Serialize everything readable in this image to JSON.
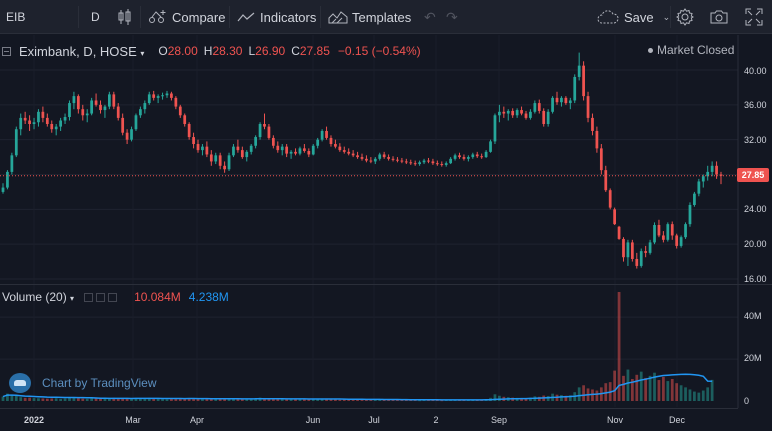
{
  "toolbar": {
    "symbol": "EIB",
    "interval": "D",
    "compare_label": "Compare",
    "indicators_label": "Indicators",
    "templates_label": "Templates",
    "save_label": "Save"
  },
  "legend": {
    "symbol_line": "Eximbank, D, HOSE",
    "open_key": "O",
    "open": "28.00",
    "high_key": "H",
    "high": "28.30",
    "low_key": "L",
    "low": "26.90",
    "close_key": "C",
    "close": "27.85",
    "change": "−0.15 (−0.54%)"
  },
  "market_status": "Market Closed",
  "price_axis": [
    "40.00",
    "36.00",
    "32.00",
    "28.00",
    "24.00",
    "20.00",
    "16.00"
  ],
  "last_price_badge": "27.85",
  "volume": {
    "title": "Volume (20)",
    "value_a": "10.084M",
    "value_b": "4.238M",
    "axis": [
      "40M",
      "20M",
      "0"
    ]
  },
  "attribution": "Chart by TradingView",
  "time_axis": [
    "2022",
    "Mar",
    "Apr",
    "Jun",
    "Jul",
    "2",
    "Sep",
    "Nov",
    "Dec"
  ],
  "colors": {
    "up": "#26a69a",
    "down": "#ef5350",
    "volume_ma": "#2196f3",
    "bg": "#131722"
  },
  "chart_data": {
    "type": "candlestick",
    "price_ylim": [
      16,
      41
    ],
    "last_price": 27.85,
    "candles": [
      [
        26.0,
        27.0,
        25.8,
        26.5
      ],
      [
        26.5,
        28.5,
        26.3,
        28.3
      ],
      [
        28.3,
        30.5,
        28.0,
        30.2
      ],
      [
        30.2,
        33.5,
        30.0,
        33.2
      ],
      [
        33.2,
        35.0,
        32.5,
        34.5
      ],
      [
        34.5,
        35.2,
        33.8,
        34.2
      ],
      [
        34.2,
        34.8,
        33.0,
        33.8
      ],
      [
        33.8,
        34.5,
        33.2,
        34.0
      ],
      [
        34.0,
        35.5,
        33.5,
        35.2
      ],
      [
        35.2,
        35.8,
        34.0,
        34.5
      ],
      [
        34.5,
        35.0,
        33.5,
        33.8
      ],
      [
        33.8,
        34.2,
        32.8,
        33.2
      ],
      [
        33.2,
        33.8,
        32.5,
        33.5
      ],
      [
        33.5,
        34.5,
        33.0,
        34.2
      ],
      [
        34.2,
        35.0,
        33.8,
        34.6
      ],
      [
        34.6,
        36.5,
        34.2,
        36.2
      ],
      [
        36.2,
        37.5,
        35.5,
        37.0
      ],
      [
        37.0,
        37.2,
        35.0,
        35.5
      ],
      [
        35.5,
        36.0,
        34.2,
        34.8
      ],
      [
        34.8,
        35.5,
        34.0,
        35.0
      ],
      [
        35.0,
        36.8,
        34.8,
        36.5
      ],
      [
        36.5,
        37.3,
        35.8,
        36.0
      ],
      [
        36.0,
        36.5,
        35.0,
        35.4
      ],
      [
        35.4,
        36.0,
        34.5,
        35.8
      ],
      [
        35.8,
        37.5,
        35.5,
        37.2
      ],
      [
        37.2,
        37.5,
        35.5,
        35.8
      ],
      [
        35.8,
        36.2,
        34.2,
        34.5
      ],
      [
        34.5,
        35.0,
        32.5,
        32.8
      ],
      [
        32.8,
        33.2,
        31.5,
        32.0
      ],
      [
        32.0,
        33.5,
        31.8,
        33.2
      ],
      [
        33.2,
        35.0,
        33.0,
        34.8
      ],
      [
        34.8,
        35.8,
        34.5,
        35.5
      ],
      [
        35.5,
        36.5,
        35.0,
        36.2
      ],
      [
        36.2,
        37.5,
        36.0,
        37.2
      ],
      [
        37.2,
        37.6,
        36.5,
        36.8
      ],
      [
        36.8,
        37.2,
        36.2,
        37.0
      ],
      [
        37.0,
        37.4,
        36.6,
        37.1
      ],
      [
        37.1,
        37.6,
        36.8,
        37.3
      ],
      [
        37.3,
        37.5,
        36.5,
        36.8
      ],
      [
        36.8,
        37.0,
        35.5,
        35.8
      ],
      [
        35.8,
        36.0,
        34.5,
        34.8
      ],
      [
        34.8,
        35.0,
        33.5,
        33.8
      ],
      [
        33.8,
        34.0,
        32.0,
        32.3
      ],
      [
        32.3,
        32.8,
        31.0,
        31.5
      ],
      [
        31.5,
        32.0,
        30.5,
        30.8
      ],
      [
        30.8,
        31.5,
        30.2,
        31.2
      ],
      [
        31.2,
        31.8,
        30.0,
        30.3
      ],
      [
        30.3,
        30.8,
        29.0,
        29.5
      ],
      [
        29.5,
        30.5,
        29.2,
        30.2
      ],
      [
        30.2,
        30.5,
        28.6,
        29.0
      ],
      [
        29.0,
        29.5,
        28.2,
        28.6
      ],
      [
        28.6,
        30.5,
        28.4,
        30.2
      ],
      [
        30.2,
        31.5,
        30.0,
        31.2
      ],
      [
        31.2,
        32.0,
        30.5,
        30.8
      ],
      [
        30.8,
        31.2,
        29.8,
        30.0
      ],
      [
        30.0,
        30.8,
        29.5,
        30.6
      ],
      [
        30.6,
        31.5,
        30.3,
        31.3
      ],
      [
        31.3,
        32.5,
        31.0,
        32.3
      ],
      [
        32.3,
        34.0,
        32.0,
        33.8
      ],
      [
        33.8,
        35.0,
        33.2,
        33.5
      ],
      [
        33.5,
        33.8,
        32.0,
        32.2
      ],
      [
        32.2,
        32.5,
        31.0,
        31.3
      ],
      [
        31.3,
        31.8,
        30.5,
        30.8
      ],
      [
        30.8,
        31.5,
        30.2,
        31.2
      ],
      [
        31.2,
        31.5,
        30.0,
        30.4
      ],
      [
        30.4,
        30.8,
        29.8,
        30.6
      ],
      [
        30.6,
        31.0,
        30.2,
        30.4
      ],
      [
        30.4,
        31.2,
        30.2,
        31.0
      ],
      [
        31.0,
        31.5,
        30.5,
        30.7
      ],
      [
        30.7,
        31.0,
        30.0,
        30.3
      ],
      [
        30.3,
        31.5,
        30.2,
        31.3
      ],
      [
        31.3,
        32.2,
        31.0,
        32.0
      ],
      [
        32.0,
        33.2,
        31.8,
        33.0
      ],
      [
        33.0,
        33.5,
        32.0,
        32.2
      ],
      [
        32.2,
        32.5,
        31.2,
        31.5
      ],
      [
        31.5,
        32.0,
        31.0,
        31.2
      ],
      [
        31.2,
        31.6,
        30.6,
        30.8
      ],
      [
        30.8,
        31.2,
        30.4,
        30.6
      ],
      [
        30.6,
        31.0,
        30.2,
        30.4
      ],
      [
        30.4,
        30.8,
        30.0,
        30.2
      ],
      [
        30.2,
        30.6,
        29.8,
        30.0
      ],
      [
        30.0,
        30.4,
        29.6,
        29.8
      ],
      [
        29.8,
        30.2,
        29.4,
        29.6
      ],
      [
        29.6,
        30.0,
        29.3,
        29.5
      ],
      [
        29.5,
        30.0,
        29.2,
        29.8
      ],
      [
        29.8,
        30.5,
        29.6,
        30.3
      ],
      [
        30.3,
        30.6,
        29.8,
        30.0
      ],
      [
        30.0,
        30.3,
        29.6,
        29.8
      ],
      [
        29.8,
        30.1,
        29.5,
        29.7
      ],
      [
        29.7,
        30.0,
        29.4,
        29.6
      ],
      [
        29.6,
        29.9,
        29.3,
        29.5
      ],
      [
        29.5,
        29.8,
        29.2,
        29.4
      ],
      [
        29.4,
        29.7,
        29.1,
        29.3
      ],
      [
        29.3,
        29.6,
        29.0,
        29.2
      ],
      [
        29.2,
        29.6,
        29.0,
        29.4
      ],
      [
        29.4,
        29.8,
        29.2,
        29.6
      ],
      [
        29.6,
        29.9,
        29.3,
        29.5
      ],
      [
        29.5,
        29.8,
        29.1,
        29.3
      ],
      [
        29.3,
        29.6,
        29.0,
        29.2
      ],
      [
        29.2,
        29.5,
        28.9,
        29.1
      ],
      [
        29.1,
        29.5,
        28.9,
        29.3
      ],
      [
        29.3,
        30.0,
        29.2,
        29.8
      ],
      [
        29.8,
        30.4,
        29.6,
        30.2
      ],
      [
        30.2,
        30.5,
        29.8,
        30.0
      ],
      [
        30.0,
        30.3,
        29.6,
        29.8
      ],
      [
        29.8,
        30.2,
        29.5,
        30.0
      ],
      [
        30.0,
        30.5,
        29.8,
        30.3
      ],
      [
        30.3,
        30.6,
        29.9,
        30.1
      ],
      [
        30.1,
        30.4,
        29.8,
        30.0
      ],
      [
        30.0,
        30.8,
        29.9,
        30.6
      ],
      [
        30.6,
        32.0,
        30.5,
        31.8
      ],
      [
        31.8,
        35.0,
        31.5,
        34.8
      ],
      [
        34.8,
        36.0,
        34.0,
        35.2
      ],
      [
        35.2,
        35.8,
        34.5,
        35.0
      ],
      [
        35.0,
        35.5,
        34.2,
        35.3
      ],
      [
        35.3,
        35.6,
        34.5,
        34.8
      ],
      [
        34.8,
        35.6,
        34.5,
        35.4
      ],
      [
        35.4,
        35.8,
        34.8,
        35.0
      ],
      [
        35.0,
        35.3,
        34.3,
        34.5
      ],
      [
        34.5,
        35.5,
        34.3,
        35.2
      ],
      [
        35.2,
        36.5,
        35.0,
        36.2
      ],
      [
        36.2,
        36.6,
        35.0,
        35.3
      ],
      [
        35.3,
        35.6,
        33.5,
        33.8
      ],
      [
        33.8,
        35.5,
        33.5,
        35.2
      ],
      [
        35.2,
        37.0,
        35.0,
        36.8
      ],
      [
        36.8,
        37.5,
        36.0,
        36.3
      ],
      [
        36.3,
        37.0,
        35.8,
        36.8
      ],
      [
        36.8,
        37.0,
        36.0,
        36.2
      ],
      [
        36.2,
        36.8,
        35.5,
        36.5
      ],
      [
        36.5,
        39.5,
        36.2,
        39.2
      ],
      [
        39.2,
        42.0,
        38.8,
        40.5
      ],
      [
        40.5,
        41.0,
        36.5,
        37.0
      ],
      [
        37.0,
        37.5,
        34.0,
        34.5
      ],
      [
        34.5,
        35.0,
        32.5,
        33.0
      ],
      [
        33.0,
        33.5,
        30.5,
        31.0
      ],
      [
        31.0,
        31.5,
        28.0,
        28.5
      ],
      [
        28.5,
        29.0,
        26.0,
        26.2
      ],
      [
        26.2,
        26.4,
        24.0,
        24.2
      ],
      [
        24.0,
        24.2,
        22.2,
        22.3
      ],
      [
        22.0,
        22.1,
        20.5,
        20.6
      ],
      [
        20.6,
        20.8,
        18.0,
        18.5
      ],
      [
        18.5,
        20.5,
        17.5,
        20.2
      ],
      [
        20.2,
        20.5,
        18.0,
        18.3
      ],
      [
        18.3,
        19.0,
        17.2,
        17.5
      ],
      [
        17.5,
        19.5,
        17.3,
        19.2
      ],
      [
        19.2,
        19.8,
        18.5,
        19.0
      ],
      [
        19.0,
        20.5,
        18.8,
        20.2
      ],
      [
        20.2,
        22.5,
        20.0,
        22.2
      ],
      [
        22.2,
        22.8,
        20.8,
        21.0
      ],
      [
        21.0,
        21.5,
        20.2,
        20.5
      ],
      [
        20.5,
        22.5,
        20.3,
        22.3
      ],
      [
        22.3,
        22.6,
        20.5,
        21.0
      ],
      [
        21.0,
        21.2,
        19.5,
        19.8
      ],
      [
        19.8,
        21.0,
        19.6,
        20.8
      ],
      [
        20.8,
        22.5,
        20.6,
        22.3
      ],
      [
        22.3,
        24.8,
        22.0,
        24.5
      ],
      [
        24.5,
        26.0,
        24.3,
        25.8
      ],
      [
        25.8,
        27.5,
        25.5,
        27.2
      ],
      [
        27.2,
        28.0,
        26.5,
        27.8
      ],
      [
        27.8,
        29.0,
        27.3,
        28.3
      ],
      [
        28.3,
        29.5,
        27.8,
        29.0
      ],
      [
        29.0,
        29.5,
        27.5,
        28.0
      ],
      [
        28.0,
        28.3,
        26.9,
        27.85
      ]
    ],
    "volumes": [
      2.1,
      3.5,
      2.8,
      2.4,
      1.8,
      1.5,
      1.6,
      1.4,
      1.3,
      1.2,
      1.1,
      1.2,
      1.3,
      1.0,
      1.2,
      1.5,
      1.4,
      1.3,
      1.1,
      1.0,
      1.2,
      1.4,
      1.1,
      1.0,
      1.3,
      1.5,
      1.2,
      1.4,
      1.1,
      1.0,
      1.3,
      1.4,
      1.2,
      1.5,
      1.1,
      1.0,
      0.9,
      0.8,
      1.1,
      1.2,
      1.0,
      1.1,
      1.3,
      1.2,
      1.0,
      0.9,
      1.0,
      1.1,
      0.9,
      1.0,
      1.1,
      1.2,
      1.0,
      0.9,
      0.8,
      0.9,
      1.0,
      1.1,
      1.6,
      1.3,
      1.2,
      1.0,
      0.9,
      0.8,
      0.7,
      0.8,
      0.9,
      0.8,
      0.7,
      0.8,
      0.9,
      1.1,
      1.2,
      1.0,
      0.8,
      0.7,
      0.6,
      0.7,
      0.6,
      0.7,
      0.6,
      0.5,
      0.6,
      0.5,
      0.6,
      0.7,
      0.6,
      0.5,
      0.5,
      0.6,
      0.5,
      0.5,
      0.6,
      0.5,
      0.4,
      0.5,
      0.6,
      0.5,
      0.5,
      0.4,
      0.5,
      0.6,
      0.7,
      0.6,
      0.5,
      0.6,
      0.7,
      0.6,
      0.5,
      0.8,
      1.5,
      3.2,
      2.5,
      2.0,
      1.8,
      1.6,
      1.5,
      1.4,
      1.3,
      1.5,
      2.2,
      2.0,
      2.6,
      2.4,
      3.5,
      3.0,
      2.8,
      2.5,
      2.7,
      4.2,
      6.5,
      7.5,
      6.0,
      5.5,
      5.0,
      6.5,
      8.5,
      9.0,
      14.5,
      52.0,
      12.0,
      15.0,
      10.5,
      12.5,
      14.0,
      11.0,
      12.0,
      13.5,
      10.0,
      11.5,
      9.5,
      10.5,
      8.5,
      7.5,
      6.5,
      5.5,
      4.5,
      4.0,
      5.0,
      6.5,
      10.084
    ],
    "volume_ylim": [
      0,
      52
    ]
  }
}
